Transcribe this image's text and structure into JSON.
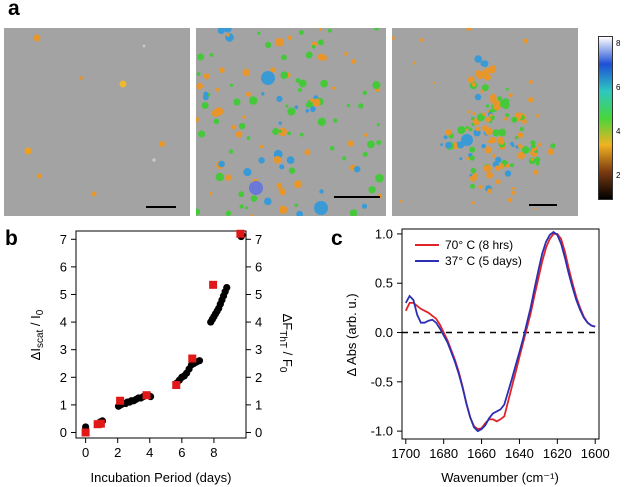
{
  "panel_labels": {
    "a": "a",
    "b": "b",
    "c": "c"
  },
  "colorbar": {
    "ticks": [
      "8",
      "6",
      "4",
      "2"
    ],
    "stops": [
      "#ffffff",
      "#1f4fd6",
      "#2dc7c0",
      "#47d63c",
      "#f2b220",
      "#7a3a10",
      "#000000"
    ]
  },
  "afm_colors": {
    "background": "#a3a3a3",
    "particle_low": "#e8962a",
    "particle_mid": "#45c93a",
    "particle_high": "#3a9ad6"
  },
  "chart_data": [
    {
      "type": "scatter",
      "panel": "b",
      "xlabel": "Incubation Period (days)",
      "ylabel_left": "ΔI_scat / I_0",
      "ylabel_right": "ΔF_ThT / F_0",
      "xlim": [
        -0.6,
        10
      ],
      "ylim": [
        -0.2,
        7.3
      ],
      "xticks": [
        "0",
        "2",
        "4",
        "6",
        "8"
      ],
      "yticks": [
        "0",
        "1",
        "2",
        "3",
        "4",
        "5",
        "6",
        "7"
      ],
      "series": [
        {
          "name": "Scattering (black circles)",
          "color": "#000000",
          "x": [
            0,
            0,
            0.75,
            0.9,
            1.05,
            2.05,
            2.2,
            2.35,
            2.5,
            2.6,
            2.75,
            2.85,
            3.0,
            3.15,
            3.3,
            3.45,
            3.6,
            3.75,
            3.9,
            4.05,
            5.7,
            5.85,
            6.0,
            6.15,
            6.3,
            6.45,
            6.6,
            6.75,
            6.9,
            7.1,
            7.8,
            7.9,
            8.0,
            8.1,
            8.2,
            8.3,
            8.4,
            8.5,
            8.6,
            8.7,
            8.8,
            9.7,
            9.75
          ],
          "values": [
            0.1,
            0.2,
            0.3,
            0.38,
            0.42,
            0.95,
            1.0,
            1.05,
            1.05,
            1.1,
            1.1,
            1.15,
            1.15,
            1.2,
            1.25,
            1.25,
            1.3,
            1.35,
            1.35,
            1.3,
            1.8,
            1.9,
            2.0,
            2.05,
            2.15,
            2.3,
            2.45,
            2.5,
            2.55,
            2.6,
            4.0,
            4.1,
            4.2,
            4.3,
            4.4,
            4.5,
            4.65,
            4.8,
            4.95,
            5.1,
            5.25,
            7.1,
            7.15
          ]
        },
        {
          "name": "ThT fluorescence (red squares)",
          "color": "#e01818",
          "x": [
            0,
            0.75,
            0.95,
            2.15,
            3.8,
            5.65,
            6.65,
            7.95,
            9.65
          ],
          "values": [
            0.0,
            0.3,
            0.32,
            1.15,
            1.35,
            1.72,
            2.68,
            5.35,
            7.2
          ]
        }
      ]
    },
    {
      "type": "line",
      "panel": "c",
      "xlabel": "Wavenumber (cm⁻¹)",
      "ylabel": "Δ Abs  (arb. u.)",
      "xlim": [
        1702,
        1598
      ],
      "ylim": [
        -1.08,
        1.05
      ],
      "xticks": [
        "1700",
        "1680",
        "1660",
        "1640",
        "1620",
        "1600"
      ],
      "yticks": [
        "1.0",
        "0.5",
        "0.0",
        "-0.5",
        "-1.0"
      ],
      "zero_line": "dashed",
      "series": [
        {
          "name": "70° C (8 hrs)",
          "color": "#e0252a",
          "x": [
            1700,
            1698,
            1696,
            1694,
            1692,
            1690,
            1688,
            1686,
            1684,
            1682,
            1680,
            1678,
            1676,
            1674,
            1672,
            1670,
            1668,
            1666,
            1664,
            1662,
            1660,
            1658,
            1656,
            1654,
            1652,
            1650,
            1648,
            1646,
            1644,
            1642,
            1640,
            1638,
            1636,
            1634,
            1632,
            1630,
            1628,
            1626,
            1624,
            1622,
            1620,
            1618,
            1616,
            1614,
            1612,
            1610,
            1608,
            1606,
            1604,
            1602,
            1600
          ],
          "values": [
            0.22,
            0.3,
            0.3,
            0.27,
            0.24,
            0.22,
            0.2,
            0.17,
            0.14,
            0.08,
            0.0,
            -0.08,
            -0.18,
            -0.28,
            -0.4,
            -0.55,
            -0.72,
            -0.86,
            -0.95,
            -0.98,
            -0.97,
            -0.92,
            -0.88,
            -0.88,
            -0.9,
            -0.88,
            -0.85,
            -0.7,
            -0.55,
            -0.4,
            -0.25,
            -0.1,
            0.05,
            0.2,
            0.38,
            0.55,
            0.72,
            0.86,
            0.95,
            1.0,
            1.0,
            0.95,
            0.82,
            0.65,
            0.5,
            0.36,
            0.25,
            0.16,
            0.1,
            0.07,
            0.06
          ]
        },
        {
          "name": "37° C (5 days)",
          "color": "#2b2fb3",
          "x": [
            1700,
            1698,
            1696,
            1694,
            1692,
            1690,
            1688,
            1686,
            1684,
            1682,
            1680,
            1678,
            1676,
            1674,
            1672,
            1670,
            1668,
            1666,
            1664,
            1662,
            1660,
            1658,
            1656,
            1654,
            1652,
            1650,
            1648,
            1646,
            1644,
            1642,
            1640,
            1638,
            1636,
            1634,
            1632,
            1630,
            1628,
            1626,
            1624,
            1622,
            1620,
            1618,
            1616,
            1614,
            1612,
            1610,
            1608,
            1606,
            1604,
            1602,
            1600
          ],
          "values": [
            0.3,
            0.37,
            0.33,
            0.18,
            0.1,
            0.1,
            0.12,
            0.13,
            0.1,
            0.04,
            -0.03,
            -0.1,
            -0.2,
            -0.3,
            -0.42,
            -0.56,
            -0.72,
            -0.86,
            -0.96,
            -1.0,
            -0.98,
            -0.94,
            -0.87,
            -0.82,
            -0.8,
            -0.78,
            -0.73,
            -0.6,
            -0.47,
            -0.33,
            -0.2,
            -0.06,
            0.1,
            0.26,
            0.45,
            0.63,
            0.8,
            0.92,
            0.99,
            1.02,
            0.99,
            0.9,
            0.76,
            0.6,
            0.46,
            0.33,
            0.23,
            0.15,
            0.1,
            0.07,
            0.06
          ]
        }
      ]
    }
  ]
}
